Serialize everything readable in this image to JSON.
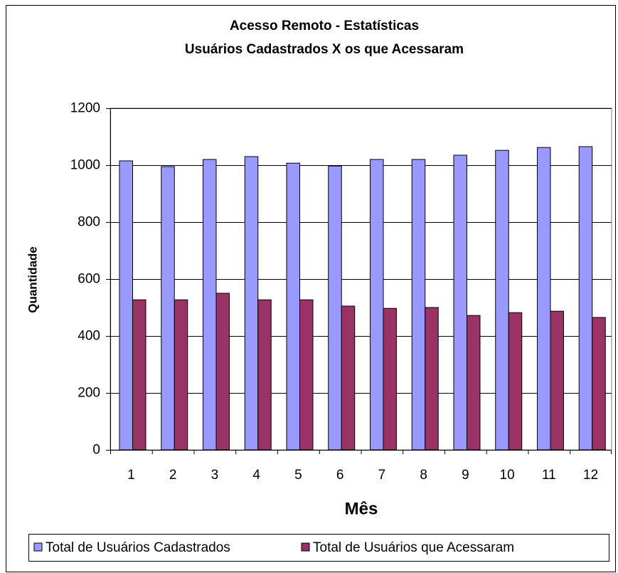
{
  "chart_data": {
    "type": "bar",
    "title": "Acesso Remoto - Estatísticas",
    "subtitle": "Usuários Cadastrados  X  os que Acessaram",
    "x_label": "Mês",
    "y_label": "Quantidade",
    "categories": [
      "1",
      "2",
      "3",
      "4",
      "5",
      "6",
      "7",
      "8",
      "9",
      "10",
      "11",
      "12"
    ],
    "series": [
      {
        "name": "Total de Usuários Cadastrados",
        "color": "#9999ff",
        "values": [
          1015,
          995,
          1020,
          1030,
          1007,
          997,
          1020,
          1020,
          1035,
          1052,
          1062,
          1065
        ]
      },
      {
        "name": "Total de Usuários que Acessaram",
        "color": "#993366",
        "values": [
          527,
          527,
          550,
          527,
          527,
          505,
          497,
          500,
          472,
          482,
          487,
          465
        ]
      }
    ],
    "ylim": [
      0,
      1200
    ],
    "yticks": [
      0,
      200,
      400,
      600,
      800,
      1000,
      1200
    ],
    "grid": true,
    "legend": "bottom"
  }
}
